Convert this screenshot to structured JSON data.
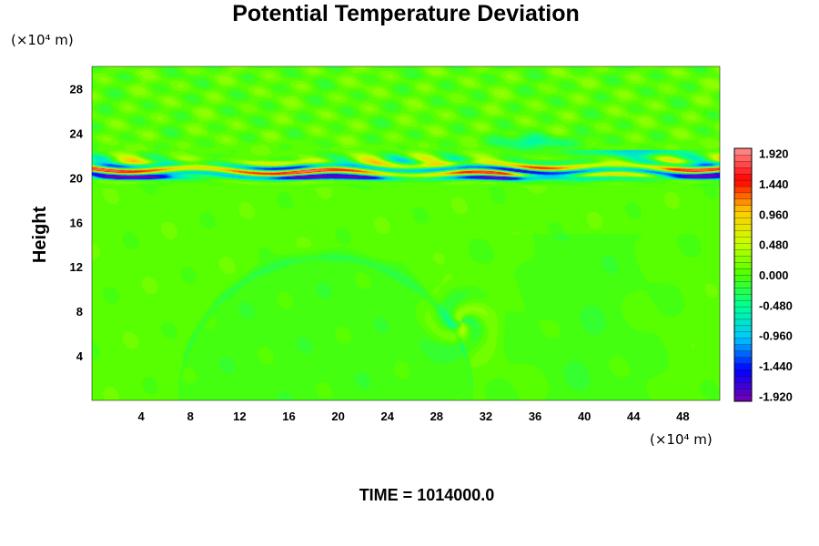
{
  "chart_data": {
    "type": "heatmap",
    "title": "Potential Temperature Deviation",
    "ylabel": "Height",
    "x_unit": "(×10⁴ m)",
    "y_unit": "(×10⁴ m)",
    "footer": "TIME = 1014000.0",
    "xlim": [
      0,
      51
    ],
    "ylim": [
      0,
      30
    ],
    "x_ticks": [
      {
        "value": 4,
        "label": "4"
      },
      {
        "value": 8,
        "label": "8"
      },
      {
        "value": 12,
        "label": "12"
      },
      {
        "value": 16,
        "label": "16"
      },
      {
        "value": 20,
        "label": "20"
      },
      {
        "value": 24,
        "label": "24"
      },
      {
        "value": 28,
        "label": "28"
      },
      {
        "value": 32,
        "label": "32"
      },
      {
        "value": 36,
        "label": "36"
      },
      {
        "value": 40,
        "label": "40"
      },
      {
        "value": 44,
        "label": "44"
      },
      {
        "value": 48,
        "label": "48"
      }
    ],
    "y_ticks": [
      {
        "value": 4,
        "label": "4"
      },
      {
        "value": 8,
        "label": "8"
      },
      {
        "value": 12,
        "label": "12"
      },
      {
        "value": 16,
        "label": "16"
      },
      {
        "value": 20,
        "label": "20"
      },
      {
        "value": 24,
        "label": "24"
      },
      {
        "value": 28,
        "label": "28"
      }
    ],
    "colorbar": {
      "range": [
        -2.0,
        2.0
      ],
      "levels": 40,
      "tick_labels": [
        {
          "value": 1.92,
          "label": "1.920"
        },
        {
          "value": 1.44,
          "label": "1.440"
        },
        {
          "value": 0.96,
          "label": "0.960"
        },
        {
          "value": 0.48,
          "label": "0.480"
        },
        {
          "value": 0.0,
          "label": "0.000"
        },
        {
          "value": -0.48,
          "label": "-0.480"
        },
        {
          "value": -0.96,
          "label": "-0.960"
        },
        {
          "value": -1.44,
          "label": "-1.440"
        },
        {
          "value": -1.92,
          "label": "-1.920"
        }
      ],
      "colors_low_to_high": [
        "#7a00b0",
        "#0000ff",
        "#00c8ff",
        "#00ff99",
        "#4cff00",
        "#c8ff00",
        "#ffcc00",
        "#ff0000",
        "#ff9090"
      ]
    },
    "features": {
      "background_value": 0.05,
      "shear_layer": {
        "y_center": 20.6,
        "y_top": 22.5,
        "amplitude": 1.92
      },
      "upper_waves": {
        "y_from": 22,
        "y_to": 30,
        "amplitude": 0.2
      },
      "cold_dome": {
        "x_center": 19,
        "y_top": 13,
        "x_halfwidth": 12,
        "amplitude": -0.1
      },
      "vortex": {
        "x": 30,
        "y": 7,
        "amplitude": -0.3
      }
    }
  }
}
